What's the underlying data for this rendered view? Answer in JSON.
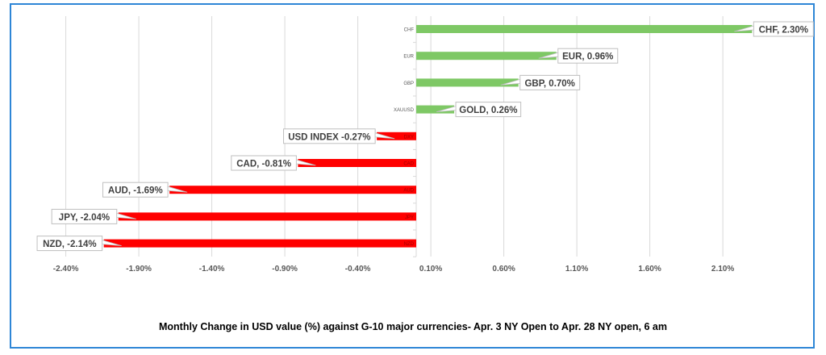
{
  "chart_data": {
    "type": "bar",
    "orientation": "horizontal",
    "title": "Monthly Change in  USD value (%)  against  G-10 major currencies- Apr. 3 NY Open to Apr. 28 NY open, 6 am",
    "xlabel": "",
    "ylabel": "",
    "xlim": [
      -2.4,
      2.4
    ],
    "grid": true,
    "xticks": [
      "-2.40%",
      "-1.90%",
      "-1.40%",
      "-0.90%",
      "-0.40%",
      "0.10%",
      "0.60%",
      "1.10%",
      "1.60%",
      "2.10%"
    ],
    "xtick_values": [
      -2.4,
      -1.9,
      -1.4,
      -0.9,
      -0.4,
      0.1,
      0.6,
      1.1,
      1.6,
      2.1
    ],
    "categories": [
      "CHF",
      "EUR",
      "GBP",
      "XAUUSD",
      "DXY",
      "CAD",
      "AUD",
      "JPY",
      "NZD"
    ],
    "values": [
      2.3,
      0.96,
      0.7,
      0.26,
      -0.27,
      -0.81,
      -1.69,
      -2.04,
      -2.14
    ],
    "data_labels": [
      "CHF, 2.30%",
      "EUR, 0.96%",
      "GBP, 0.70%",
      "GOLD, 0.26%",
      "USD INDEX -0.27%",
      "CAD, -0.81%",
      "AUD, -1.69%",
      "JPY, -2.04%",
      "NZD, -2.14%"
    ],
    "colors": {
      "positive": "#7ec865",
      "negative": "#ff0000",
      "grid": "#d9d9d9",
      "frame": "#2e86d6"
    }
  }
}
